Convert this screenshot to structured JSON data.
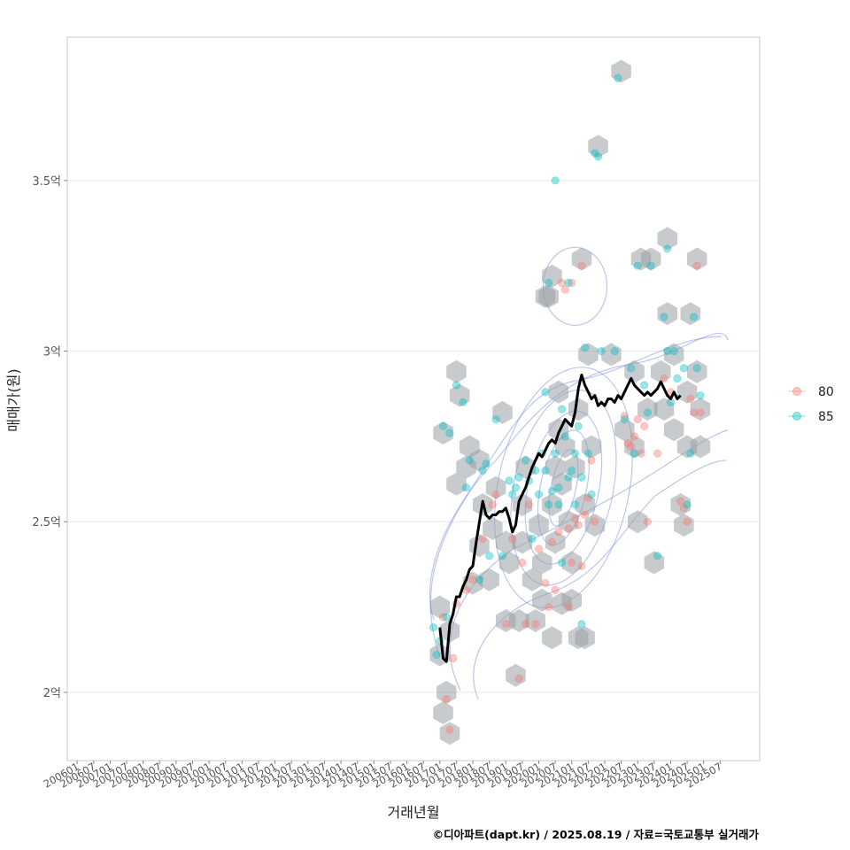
{
  "chart_data": {
    "type": "scatter",
    "title": "",
    "xlabel": "거래년월",
    "ylabel": "매매가(원)",
    "caption": "©디아파트(dapt.kr) / 2025.08.19 / 자료=국토교통부 실거래가",
    "x_domain": [
      2005.7,
      2026.7
    ],
    "ylim": [
      1.8,
      3.92
    ],
    "y_ticks": [
      {
        "value": 2.0,
        "label": "2억"
      },
      {
        "value": 2.5,
        "label": "2.5억"
      },
      {
        "value": 3.0,
        "label": "3억"
      },
      {
        "value": 3.5,
        "label": "3.5억"
      }
    ],
    "x_ticks": [
      {
        "value": 2006.0,
        "label": "200601"
      },
      {
        "value": 2006.5,
        "label": "200607"
      },
      {
        "value": 2007.0,
        "label": "200701"
      },
      {
        "value": 2007.5,
        "label": "200707"
      },
      {
        "value": 2008.0,
        "label": "200801"
      },
      {
        "value": 2008.5,
        "label": "200807"
      },
      {
        "value": 2009.0,
        "label": "200901"
      },
      {
        "value": 2009.5,
        "label": "200907"
      },
      {
        "value": 2010.0,
        "label": "201001"
      },
      {
        "value": 2010.5,
        "label": "201007"
      },
      {
        "value": 2011.0,
        "label": "201101"
      },
      {
        "value": 2011.5,
        "label": "201107"
      },
      {
        "value": 2012.0,
        "label": "201201"
      },
      {
        "value": 2012.5,
        "label": "201207"
      },
      {
        "value": 2013.0,
        "label": "201301"
      },
      {
        "value": 2013.5,
        "label": "201307"
      },
      {
        "value": 2014.0,
        "label": "201401"
      },
      {
        "value": 2014.5,
        "label": "201407"
      },
      {
        "value": 2015.0,
        "label": "201501"
      },
      {
        "value": 2015.5,
        "label": "201507"
      },
      {
        "value": 2016.0,
        "label": "201601"
      },
      {
        "value": 2016.5,
        "label": "201607"
      },
      {
        "value": 2017.0,
        "label": "201701"
      },
      {
        "value": 2017.5,
        "label": "201707"
      },
      {
        "value": 2018.0,
        "label": "201801"
      },
      {
        "value": 2018.5,
        "label": "201807"
      },
      {
        "value": 2019.0,
        "label": "201901"
      },
      {
        "value": 2019.5,
        "label": "201907"
      },
      {
        "value": 2020.0,
        "label": "202001"
      },
      {
        "value": 2020.5,
        "label": "202007"
      },
      {
        "value": 2021.0,
        "label": "202101"
      },
      {
        "value": 2021.5,
        "label": "202107"
      },
      {
        "value": 2022.0,
        "label": "202201"
      },
      {
        "value": 2022.5,
        "label": "202207"
      },
      {
        "value": 2023.0,
        "label": "202301"
      },
      {
        "value": 2023.5,
        "label": "202307"
      },
      {
        "value": 2024.0,
        "label": "202401"
      },
      {
        "value": 2024.5,
        "label": "202407"
      },
      {
        "value": 2025.0,
        "label": "202501"
      },
      {
        "value": 2025.5,
        "label": "202507"
      }
    ],
    "legend": {
      "position": "right",
      "entries": [
        {
          "name": "80",
          "color": "#F8766D"
        },
        {
          "name": "85",
          "color": "#00BFC4"
        }
      ]
    },
    "series": [
      {
        "name": "80",
        "color": "#F8766D",
        "points": [
          [
            2017.1,
            2.22
          ],
          [
            2017.2,
            1.98
          ],
          [
            2017.3,
            1.89
          ],
          [
            2017.4,
            2.1
          ],
          [
            2017.5,
            2.26
          ],
          [
            2017.8,
            2.3
          ],
          [
            2018.0,
            2.33
          ],
          [
            2018.3,
            2.45
          ],
          [
            2018.6,
            2.55
          ],
          [
            2018.7,
            2.58
          ],
          [
            2019.0,
            2.2
          ],
          [
            2019.2,
            2.45
          ],
          [
            2019.4,
            2.04
          ],
          [
            2019.5,
            2.38
          ],
          [
            2019.6,
            2.2
          ],
          [
            2019.7,
            2.55
          ],
          [
            2019.9,
            2.2
          ],
          [
            2020.0,
            2.42
          ],
          [
            2020.2,
            2.32
          ],
          [
            2020.3,
            2.25
          ],
          [
            2020.4,
            2.44
          ],
          [
            2020.5,
            2.3
          ],
          [
            2020.6,
            2.47
          ],
          [
            2020.7,
            3.2
          ],
          [
            2020.8,
            3.18
          ],
          [
            2020.9,
            2.48
          ],
          [
            2020.9,
            2.25
          ],
          [
            2021.0,
            3.2
          ],
          [
            2021.0,
            2.38
          ],
          [
            2021.1,
            2.51
          ],
          [
            2021.2,
            2.49
          ],
          [
            2021.3,
            3.25
          ],
          [
            2021.3,
            2.37
          ],
          [
            2021.4,
            2.52
          ],
          [
            2021.5,
            2.57
          ],
          [
            2021.6,
            2.68
          ],
          [
            2021.7,
            2.5
          ],
          [
            2022.6,
            2.81
          ],
          [
            2022.7,
            2.73
          ],
          [
            2022.8,
            2.72
          ],
          [
            2022.9,
            2.75
          ],
          [
            2023.0,
            2.8
          ],
          [
            2023.1,
            2.7
          ],
          [
            2023.2,
            2.78
          ],
          [
            2023.3,
            2.5
          ],
          [
            2023.6,
            2.7
          ],
          [
            2023.8,
            2.92
          ],
          [
            2024.0,
            2.88
          ],
          [
            2024.3,
            2.56
          ],
          [
            2024.4,
            2.54
          ],
          [
            2024.5,
            2.5
          ],
          [
            2024.7,
            2.82
          ],
          [
            2024.8,
            3.25
          ],
          [
            2024.6,
            2.86
          ],
          [
            2024.9,
            2.82
          ]
        ]
      },
      {
        "name": "85",
        "color": "#00BFC4",
        "points": [
          [
            2016.8,
            2.19
          ],
          [
            2016.9,
            2.11
          ],
          [
            2017.0,
            2.15
          ],
          [
            2017.1,
            2.78
          ],
          [
            2017.2,
            2.22
          ],
          [
            2017.3,
            2.76
          ],
          [
            2017.5,
            2.9
          ],
          [
            2017.7,
            2.85
          ],
          [
            2017.8,
            2.6
          ],
          [
            2017.9,
            2.68
          ],
          [
            2018.2,
            2.33
          ],
          [
            2018.3,
            2.65
          ],
          [
            2018.4,
            2.67
          ],
          [
            2018.5,
            2.4
          ],
          [
            2018.7,
            2.8
          ],
          [
            2018.9,
            2.4
          ],
          [
            2019.1,
            2.62
          ],
          [
            2019.2,
            2.58
          ],
          [
            2019.3,
            2.6
          ],
          [
            2019.4,
            2.63
          ],
          [
            2019.6,
            2.68
          ],
          [
            2019.7,
            2.62
          ],
          [
            2019.8,
            2.45
          ],
          [
            2019.9,
            2.65
          ],
          [
            2020.0,
            2.58
          ],
          [
            2020.1,
            2.7
          ],
          [
            2020.2,
            2.88
          ],
          [
            2020.2,
            2.65
          ],
          [
            2020.3,
            3.2
          ],
          [
            2020.3,
            2.55
          ],
          [
            2020.4,
            2.59
          ],
          [
            2020.5,
            3.5
          ],
          [
            2020.5,
            2.7
          ],
          [
            2020.6,
            2.6
          ],
          [
            2020.6,
            2.55
          ],
          [
            2020.7,
            2.38
          ],
          [
            2020.7,
            2.83
          ],
          [
            2020.8,
            2.75
          ],
          [
            2020.9,
            2.63
          ],
          [
            2020.9,
            3.2
          ],
          [
            2021.0,
            2.65
          ],
          [
            2021.1,
            2.55
          ],
          [
            2021.1,
            2.7
          ],
          [
            2021.2,
            2.78
          ],
          [
            2021.3,
            2.63
          ],
          [
            2021.3,
            2.2
          ],
          [
            2021.4,
            3.01
          ],
          [
            2021.5,
            2.7
          ],
          [
            2021.6,
            2.58
          ],
          [
            2021.7,
            3.58
          ],
          [
            2021.8,
            3.57
          ],
          [
            2021.9,
            3.0
          ],
          [
            2022.3,
            3.0
          ],
          [
            2022.4,
            3.8
          ],
          [
            2022.6,
            2.8
          ],
          [
            2022.8,
            2.95
          ],
          [
            2022.9,
            2.7
          ],
          [
            2023.0,
            3.25
          ],
          [
            2023.2,
            2.9
          ],
          [
            2023.3,
            2.82
          ],
          [
            2023.4,
            3.25
          ],
          [
            2023.6,
            2.4
          ],
          [
            2023.8,
            3.1
          ],
          [
            2023.9,
            3.0
          ],
          [
            2023.9,
            3.3
          ],
          [
            2024.0,
            2.85
          ],
          [
            2024.1,
            3.0
          ],
          [
            2024.2,
            2.92
          ],
          [
            2024.4,
            2.95
          ],
          [
            2024.5,
            2.55
          ],
          [
            2024.6,
            2.7
          ],
          [
            2024.7,
            3.1
          ],
          [
            2024.8,
            2.95
          ],
          [
            2024.9,
            2.87
          ]
        ]
      }
    ],
    "hexbins": [
      [
        2017.0,
        2.11
      ],
      [
        2017.2,
        2.0
      ],
      [
        2017.1,
        1.94
      ],
      [
        2017.3,
        1.88
      ],
      [
        2017.0,
        2.25
      ],
      [
        2017.3,
        2.18
      ],
      [
        2017.1,
        2.76
      ],
      [
        2017.5,
        2.94
      ],
      [
        2017.6,
        2.87
      ],
      [
        2017.5,
        2.61
      ],
      [
        2017.8,
        2.66
      ],
      [
        2017.9,
        2.72
      ],
      [
        2018.0,
        2.32
      ],
      [
        2018.2,
        2.43
      ],
      [
        2018.3,
        2.55
      ],
      [
        2018.2,
        2.68
      ],
      [
        2018.6,
        2.48
      ],
      [
        2018.9,
        2.82
      ],
      [
        2018.7,
        2.6
      ],
      [
        2018.5,
        2.33
      ],
      [
        2019.0,
        2.44
      ],
      [
        2019.1,
        2.38
      ],
      [
        2019.0,
        2.21
      ],
      [
        2019.3,
        2.05
      ],
      [
        2019.4,
        2.21
      ],
      [
        2019.5,
        2.55
      ],
      [
        2019.6,
        2.66
      ],
      [
        2019.5,
        2.44
      ],
      [
        2019.8,
        2.33
      ],
      [
        2019.9,
        2.21
      ],
      [
        2020.0,
        2.49
      ],
      [
        2020.1,
        2.38
      ],
      [
        2020.1,
        2.27
      ],
      [
        2020.2,
        3.16
      ],
      [
        2020.4,
        3.22
      ],
      [
        2020.3,
        3.16
      ],
      [
        2020.4,
        2.55
      ],
      [
        2020.5,
        2.66
      ],
      [
        2020.6,
        2.77
      ],
      [
        2020.6,
        2.88
      ],
      [
        2020.5,
        2.44
      ],
      [
        2020.4,
        2.16
      ],
      [
        2020.7,
        2.61
      ],
      [
        2020.8,
        2.72
      ],
      [
        2020.9,
        2.5
      ],
      [
        2021.0,
        2.38
      ],
      [
        2021.1,
        2.66
      ],
      [
        2021.2,
        2.83
      ],
      [
        2021.3,
        3.27
      ],
      [
        2021.4,
        2.55
      ],
      [
        2021.4,
        2.16
      ],
      [
        2021.5,
        2.99
      ],
      [
        2021.6,
        2.72
      ],
      [
        2021.7,
        2.49
      ],
      [
        2021.8,
        3.6
      ],
      [
        2022.2,
        2.99
      ],
      [
        2022.5,
        3.82
      ],
      [
        2022.6,
        2.77
      ],
      [
        2022.9,
        2.94
      ],
      [
        2022.9,
        2.72
      ],
      [
        2023.0,
        2.5
      ],
      [
        2023.1,
        3.27
      ],
      [
        2023.3,
        2.83
      ],
      [
        2023.4,
        3.27
      ],
      [
        2023.5,
        2.38
      ],
      [
        2023.7,
        2.94
      ],
      [
        2023.8,
        2.83
      ],
      [
        2023.9,
        3.11
      ],
      [
        2023.9,
        3.33
      ],
      [
        2024.1,
        2.99
      ],
      [
        2024.1,
        2.77
      ],
      [
        2024.3,
        2.55
      ],
      [
        2024.4,
        2.49
      ],
      [
        2024.5,
        2.88
      ],
      [
        2024.5,
        2.72
      ],
      [
        2024.6,
        3.11
      ],
      [
        2024.8,
        3.27
      ],
      [
        2024.8,
        2.94
      ],
      [
        2024.9,
        2.83
      ],
      [
        2024.9,
        2.72
      ],
      [
        2020.7,
        2.26
      ],
      [
        2021.0,
        2.27
      ],
      [
        2021.2,
        2.16
      ]
    ],
    "trend_line": [
      [
        2017.0,
        2.19
      ],
      [
        2017.1,
        2.1
      ],
      [
        2017.2,
        2.09
      ],
      [
        2017.3,
        2.2
      ],
      [
        2017.4,
        2.23
      ],
      [
        2017.5,
        2.28
      ],
      [
        2017.6,
        2.28
      ],
      [
        2017.7,
        2.31
      ],
      [
        2017.8,
        2.33
      ],
      [
        2017.9,
        2.36
      ],
      [
        2018.0,
        2.37
      ],
      [
        2018.1,
        2.44
      ],
      [
        2018.2,
        2.5
      ],
      [
        2018.3,
        2.56
      ],
      [
        2018.4,
        2.52
      ],
      [
        2018.5,
        2.51
      ],
      [
        2018.6,
        2.52
      ],
      [
        2018.7,
        2.52
      ],
      [
        2018.8,
        2.53
      ],
      [
        2018.9,
        2.53
      ],
      [
        2019.0,
        2.54
      ],
      [
        2019.1,
        2.51
      ],
      [
        2019.2,
        2.47
      ],
      [
        2019.3,
        2.49
      ],
      [
        2019.4,
        2.56
      ],
      [
        2019.5,
        2.58
      ],
      [
        2019.6,
        2.6
      ],
      [
        2019.7,
        2.63
      ],
      [
        2019.8,
        2.66
      ],
      [
        2019.9,
        2.68
      ],
      [
        2020.0,
        2.7
      ],
      [
        2020.1,
        2.69
      ],
      [
        2020.2,
        2.71
      ],
      [
        2020.3,
        2.73
      ],
      [
        2020.4,
        2.74
      ],
      [
        2020.5,
        2.73
      ],
      [
        2020.6,
        2.76
      ],
      [
        2020.7,
        2.78
      ],
      [
        2020.8,
        2.8
      ],
      [
        2020.9,
        2.79
      ],
      [
        2021.0,
        2.78
      ],
      [
        2021.1,
        2.82
      ],
      [
        2021.2,
        2.89
      ],
      [
        2021.3,
        2.93
      ],
      [
        2021.4,
        2.9
      ],
      [
        2021.5,
        2.88
      ],
      [
        2021.6,
        2.86
      ],
      [
        2021.7,
        2.87
      ],
      [
        2021.8,
        2.84
      ],
      [
        2021.9,
        2.85
      ],
      [
        2022.0,
        2.84
      ],
      [
        2022.1,
        2.86
      ],
      [
        2022.2,
        2.86
      ],
      [
        2022.3,
        2.85
      ],
      [
        2022.4,
        2.87
      ],
      [
        2022.5,
        2.86
      ],
      [
        2022.6,
        2.88
      ],
      [
        2022.7,
        2.9
      ],
      [
        2022.8,
        2.92
      ],
      [
        2022.9,
        2.9
      ],
      [
        2023.0,
        2.89
      ],
      [
        2023.1,
        2.88
      ],
      [
        2023.2,
        2.87
      ],
      [
        2023.3,
        2.88
      ],
      [
        2023.4,
        2.87
      ],
      [
        2023.5,
        2.88
      ],
      [
        2023.6,
        2.89
      ],
      [
        2023.7,
        2.91
      ],
      [
        2023.8,
        2.89
      ],
      [
        2023.9,
        2.87
      ],
      [
        2024.0,
        2.86
      ],
      [
        2024.1,
        2.88
      ],
      [
        2024.2,
        2.86
      ],
      [
        2024.3,
        2.87
      ]
    ]
  },
  "colors": {
    "panel_border": "#c8c8c8",
    "gridline": "#e6e6e6",
    "hex_fill": "#9aa0a6",
    "density_contour": "#6a7fd9",
    "trend": "#000000"
  }
}
